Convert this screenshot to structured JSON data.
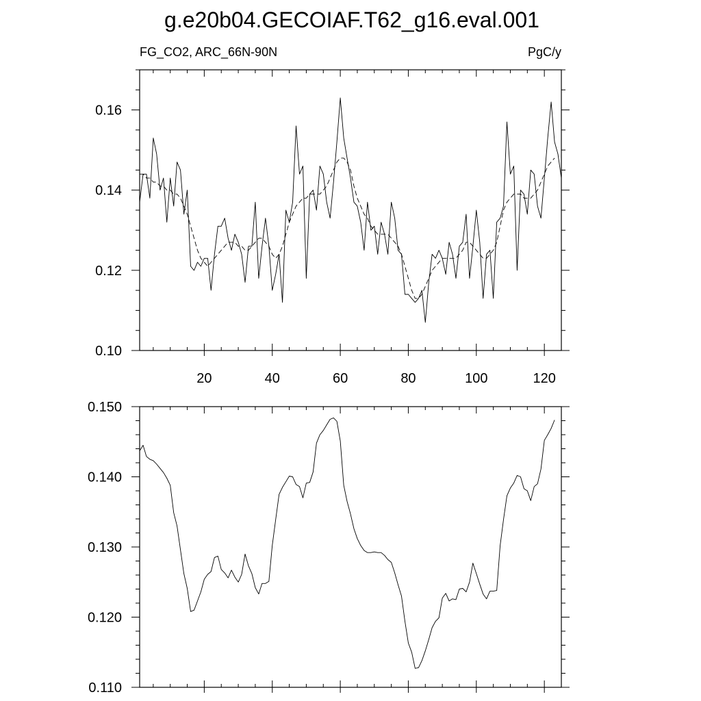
{
  "title": "g.e20b04.GECOIAF.T62_g16.eval.001",
  "chart_data": [
    {
      "type": "line",
      "left_label": "FG_CO2, ARC_66N-90N",
      "right_label": "PgC/y",
      "xlim": [
        1,
        125
      ],
      "ylim": [
        0.1,
        0.17
      ],
      "x_ticks": [
        "20",
        "40",
        "60",
        "80",
        "100",
        "120"
      ],
      "y_ticks": [
        "0.10",
        "0.12",
        "0.14",
        "0.16"
      ],
      "series": [
        {
          "style": "solid",
          "values": [
            0.137,
            0.144,
            0.144,
            0.138,
            0.153,
            0.149,
            0.14,
            0.143,
            0.132,
            0.143,
            0.136,
            0.147,
            0.145,
            0.134,
            0.14,
            0.121,
            0.12,
            0.122,
            0.121,
            0.123,
            0.123,
            0.115,
            0.124,
            0.131,
            0.131,
            0.133,
            0.128,
            0.125,
            0.129,
            0.127,
            0.124,
            0.117,
            0.126,
            0.126,
            0.137,
            0.118,
            0.126,
            0.133,
            0.126,
            0.115,
            0.119,
            0.124,
            0.112,
            0.135,
            0.132,
            0.137,
            0.156,
            0.144,
            0.146,
            0.118,
            0.139,
            0.14,
            0.135,
            0.146,
            0.144,
            0.137,
            0.133,
            0.142,
            0.152,
            0.163,
            0.153,
            0.148,
            0.143,
            0.137,
            0.136,
            0.132,
            0.125,
            0.137,
            0.13,
            0.131,
            0.124,
            0.132,
            0.129,
            0.124,
            0.137,
            0.133,
            0.125,
            0.124,
            0.114,
            0.114,
            0.113,
            0.112,
            0.113,
            0.115,
            0.107,
            0.117,
            0.124,
            0.123,
            0.125,
            0.123,
            0.119,
            0.127,
            0.124,
            0.118,
            0.126,
            0.127,
            0.134,
            0.118,
            0.126,
            0.135,
            0.127,
            0.113,
            0.124,
            0.125,
            0.113,
            0.132,
            0.133,
            0.136,
            0.157,
            0.144,
            0.146,
            0.12,
            0.14,
            0.139,
            0.134,
            0.145,
            0.144,
            0.136,
            0.133,
            0.143,
            0.153,
            0.162,
            0.152,
            0.149,
            0.143
          ]
        },
        {
          "style": "dashed",
          "values": [
            0.144,
            0.144,
            0.143,
            0.143,
            0.142,
            0.142,
            0.141,
            0.141,
            0.14,
            0.14,
            0.139,
            0.139,
            0.138,
            0.136,
            0.134,
            0.131,
            0.128,
            0.125,
            0.123,
            0.122,
            0.121,
            0.122,
            0.123,
            0.124,
            0.125,
            0.126,
            0.127,
            0.127,
            0.127,
            0.126,
            0.126,
            0.125,
            0.125,
            0.126,
            0.127,
            0.128,
            0.128,
            0.127,
            0.126,
            0.124,
            0.123,
            0.124,
            0.126,
            0.129,
            0.132,
            0.134,
            0.136,
            0.137,
            0.138,
            0.138,
            0.139,
            0.139,
            0.139,
            0.139,
            0.14,
            0.141,
            0.143,
            0.145,
            0.147,
            0.148,
            0.148,
            0.147,
            0.145,
            0.141,
            0.138,
            0.136,
            0.134,
            0.133,
            0.131,
            0.13,
            0.129,
            0.129,
            0.129,
            0.129,
            0.128,
            0.127,
            0.126,
            0.124,
            0.121,
            0.118,
            0.115,
            0.113,
            0.113,
            0.114,
            0.116,
            0.118,
            0.12,
            0.121,
            0.122,
            0.123,
            0.123,
            0.123,
            0.123,
            0.123,
            0.124,
            0.125,
            0.127,
            0.127,
            0.126,
            0.125,
            0.124,
            0.123,
            0.123,
            0.124,
            0.125,
            0.127,
            0.131,
            0.135,
            0.137,
            0.138,
            0.139,
            0.139,
            0.139,
            0.138,
            0.138,
            0.138,
            0.139,
            0.14,
            0.142,
            0.144,
            0.146,
            0.147,
            0.148
          ]
        }
      ]
    },
    {
      "type": "line",
      "xlim": [
        1,
        125
      ],
      "ylim": [
        0.11,
        0.15
      ],
      "y_ticks": [
        "0.110",
        "0.120",
        "0.130",
        "0.140",
        "0.150"
      ],
      "series": [
        {
          "style": "solid",
          "values": [
            0.1437,
            0.1445,
            0.1429,
            0.1425,
            0.1423,
            0.1418,
            0.1412,
            0.1406,
            0.1398,
            0.1388,
            0.1349,
            0.133,
            0.1296,
            0.1262,
            0.1241,
            0.1208,
            0.121,
            0.1223,
            0.1236,
            0.1254,
            0.1261,
            0.1265,
            0.1285,
            0.1287,
            0.1268,
            0.1263,
            0.1256,
            0.1267,
            0.1257,
            0.125,
            0.1261,
            0.129,
            0.1273,
            0.1262,
            0.1242,
            0.1233,
            0.1248,
            0.1248,
            0.1251,
            0.1302,
            0.1339,
            0.1375,
            0.1385,
            0.1393,
            0.1401,
            0.14,
            0.1389,
            0.1386,
            0.137,
            0.1391,
            0.1392,
            0.1407,
            0.1448,
            0.146,
            0.1466,
            0.1474,
            0.1482,
            0.1484,
            0.1479,
            0.1451,
            0.1388,
            0.1365,
            0.1347,
            0.1326,
            0.1312,
            0.1302,
            0.1295,
            0.1292,
            0.1292,
            0.1293,
            0.1292,
            0.1292,
            0.1288,
            0.1282,
            0.1278,
            0.1263,
            0.1246,
            0.123,
            0.1194,
            0.1163,
            0.115,
            0.1127,
            0.1128,
            0.1138,
            0.1152,
            0.1168,
            0.1185,
            0.1194,
            0.1199,
            0.1227,
            0.1234,
            0.1223,
            0.1226,
            0.1225,
            0.124,
            0.1241,
            0.1236,
            0.125,
            0.1277,
            0.1262,
            0.1247,
            0.1233,
            0.1226,
            0.1237,
            0.1237,
            0.1238,
            0.1302,
            0.1339,
            0.1373,
            0.1384,
            0.1391,
            0.1402,
            0.14,
            0.1383,
            0.138,
            0.1366,
            0.1386,
            0.139,
            0.1411,
            0.1452,
            0.146,
            0.1469,
            0.1481
          ]
        }
      ]
    }
  ]
}
